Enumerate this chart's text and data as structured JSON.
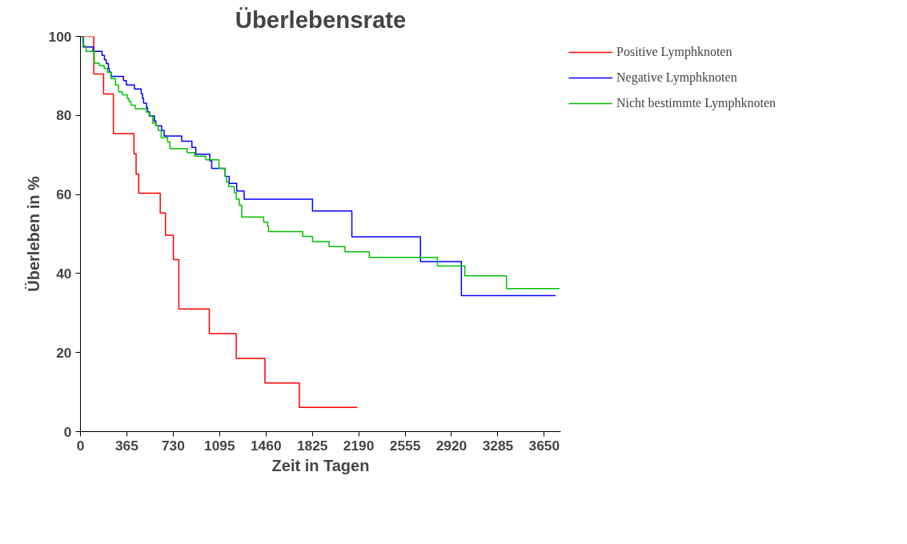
{
  "chart_data": {
    "type": "step",
    "title": "Überlebensrate",
    "xlabel": "Zeit in Tagen",
    "ylabel": "Überleben in %",
    "xlim": [
      0,
      3780
    ],
    "xticks": [
      0,
      365,
      730,
      1095,
      1460,
      1825,
      2190,
      2555,
      2920,
      3285,
      3650
    ],
    "ylim": [
      0,
      100
    ],
    "yticks": [
      0,
      20,
      40,
      60,
      80,
      100
    ],
    "grid": false,
    "legend": "top right",
    "series": [
      {
        "name": "Positive Lymphknoten",
        "color": "#ff0000",
        "x": [
          0,
          105,
          182,
          259,
          421,
          438,
          458,
          628,
          669,
          731,
          774,
          1014,
          1226,
          1452,
          1723,
          2180
        ],
        "values": [
          100,
          90.5,
          85.4,
          75.4,
          70.3,
          65.2,
          60.3,
          55.3,
          49.7,
          43.5,
          31.0,
          24.8,
          18.5,
          12.3,
          6.1,
          6.1
        ]
      },
      {
        "name": "Negative Lymphknoten",
        "color": "#0000ff",
        "x": [
          0,
          22,
          99,
          170,
          189,
          203,
          220,
          226,
          240,
          339,
          361,
          425,
          478,
          489,
          497,
          520,
          528,
          544,
          581,
          593,
          639,
          659,
          797,
          877,
          908,
          1018,
          1033,
          1139,
          1171,
          1230,
          1288,
          1826,
          2136,
          2676,
          2998,
          3739
        ],
        "values": [
          100,
          97.3,
          96.2,
          95.2,
          94.1,
          93.1,
          91.9,
          91.0,
          89.9,
          88.8,
          87.7,
          86.7,
          85.5,
          84.3,
          83.1,
          82.0,
          80.9,
          79.9,
          78.6,
          77.4,
          76.2,
          74.8,
          73.5,
          71.9,
          70.2,
          68.5,
          66.6,
          64.6,
          62.8,
          60.9,
          58.8,
          55.8,
          49.3,
          43.0,
          34.4,
          34.4
        ]
      },
      {
        "name": "Nicht bestimmte Lymphknoten",
        "color": "#00c000",
        "x": [
          0,
          25,
          45,
          109,
          148,
          187,
          213,
          242,
          275,
          300,
          329,
          368,
          382,
          398,
          431,
          520,
          540,
          569,
          593,
          612,
          636,
          686,
          704,
          840,
          899,
          986,
          1090,
          1139,
          1149,
          1166,
          1211,
          1226,
          1250,
          1269,
          1442,
          1474,
          1480,
          1749,
          1826,
          1957,
          2082,
          2273,
          2809,
          3025,
          3353,
          3770
        ],
        "values": [
          100,
          97.5,
          96.2,
          93.2,
          92.6,
          91.9,
          90.9,
          89.3,
          87.7,
          86.0,
          85.2,
          84.3,
          83.5,
          82.6,
          81.7,
          80.8,
          79.8,
          78.1,
          77.4,
          76.2,
          74.4,
          73.3,
          71.6,
          70.6,
          69.7,
          68.8,
          66.6,
          64.6,
          63.2,
          62.0,
          60.5,
          58.8,
          57.3,
          54.3,
          53.0,
          51.9,
          50.6,
          49.4,
          48.1,
          46.8,
          45.5,
          44.1,
          41.9,
          39.4,
          36.2,
          36.2
        ]
      }
    ]
  }
}
